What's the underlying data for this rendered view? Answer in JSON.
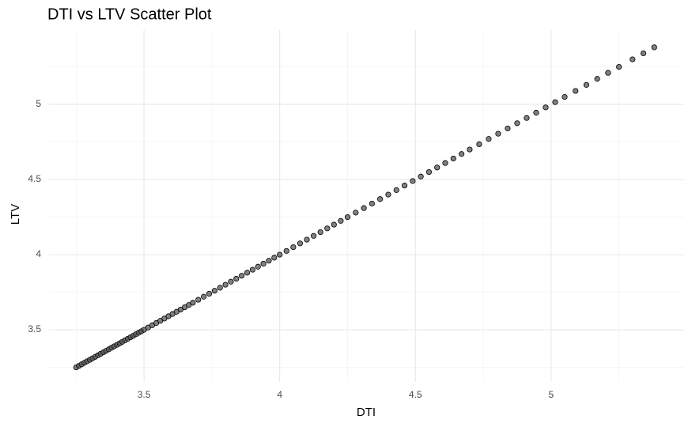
{
  "chart_data": {
    "type": "scatter",
    "title": "DTI vs LTV Scatter Plot",
    "x_label": "DTI",
    "y_label": "LTV",
    "x": [
      3.25,
      3.26,
      3.27,
      3.28,
      3.29,
      3.3,
      3.31,
      3.32,
      3.33,
      3.34,
      3.35,
      3.36,
      3.37,
      3.38,
      3.39,
      3.4,
      3.41,
      3.42,
      3.43,
      3.44,
      3.45,
      3.46,
      3.47,
      3.48,
      3.49,
      3.5,
      3.515,
      3.53,
      3.545,
      3.56,
      3.575,
      3.59,
      3.605,
      3.62,
      3.635,
      3.65,
      3.665,
      3.68,
      3.7,
      3.72,
      3.74,
      3.76,
      3.78,
      3.8,
      3.82,
      3.84,
      3.86,
      3.88,
      3.9,
      3.92,
      3.94,
      3.96,
      3.98,
      4.0,
      4.025,
      4.05,
      4.075,
      4.1,
      4.125,
      4.15,
      4.175,
      4.2,
      4.225,
      4.25,
      4.28,
      4.31,
      4.34,
      4.37,
      4.4,
      4.43,
      4.46,
      4.49,
      4.52,
      4.55,
      4.58,
      4.61,
      4.64,
      4.67,
      4.7,
      4.735,
      4.77,
      4.805,
      4.84,
      4.875,
      4.91,
      4.945,
      4.98,
      5.015,
      5.05,
      5.09,
      5.13,
      5.17,
      5.21,
      5.25,
      5.3,
      5.34,
      5.38
    ],
    "y": [
      3.25,
      3.26,
      3.27,
      3.28,
      3.29,
      3.3,
      3.31,
      3.32,
      3.33,
      3.34,
      3.35,
      3.36,
      3.37,
      3.38,
      3.39,
      3.4,
      3.41,
      3.42,
      3.43,
      3.44,
      3.45,
      3.46,
      3.47,
      3.48,
      3.49,
      3.5,
      3.515,
      3.53,
      3.545,
      3.56,
      3.575,
      3.59,
      3.605,
      3.62,
      3.635,
      3.65,
      3.665,
      3.68,
      3.7,
      3.72,
      3.74,
      3.76,
      3.78,
      3.8,
      3.82,
      3.84,
      3.86,
      3.88,
      3.9,
      3.92,
      3.94,
      3.96,
      3.98,
      4.0,
      4.025,
      4.05,
      4.075,
      4.1,
      4.125,
      4.15,
      4.175,
      4.2,
      4.225,
      4.25,
      4.28,
      4.31,
      4.34,
      4.37,
      4.4,
      4.43,
      4.46,
      4.49,
      4.52,
      4.55,
      4.58,
      4.61,
      4.64,
      4.67,
      4.7,
      4.735,
      4.77,
      4.805,
      4.84,
      4.875,
      4.91,
      4.945,
      4.98,
      5.015,
      5.05,
      5.09,
      5.13,
      5.17,
      5.21,
      5.25,
      5.3,
      5.34,
      5.38
    ],
    "color": "#555555",
    "xlim": [
      3.15,
      5.49
    ],
    "ylim": [
      3.153,
      5.495
    ],
    "xticks": [
      3.5,
      4.0,
      4.5,
      5.0
    ],
    "yticks": [
      3.5,
      4.0,
      4.5,
      5.0
    ],
    "xminor": [
      3.25,
      3.75,
      4.25,
      4.75,
      5.25
    ],
    "yminor": [
      3.25,
      3.75,
      4.25,
      4.75,
      5.25
    ],
    "grid": true
  }
}
